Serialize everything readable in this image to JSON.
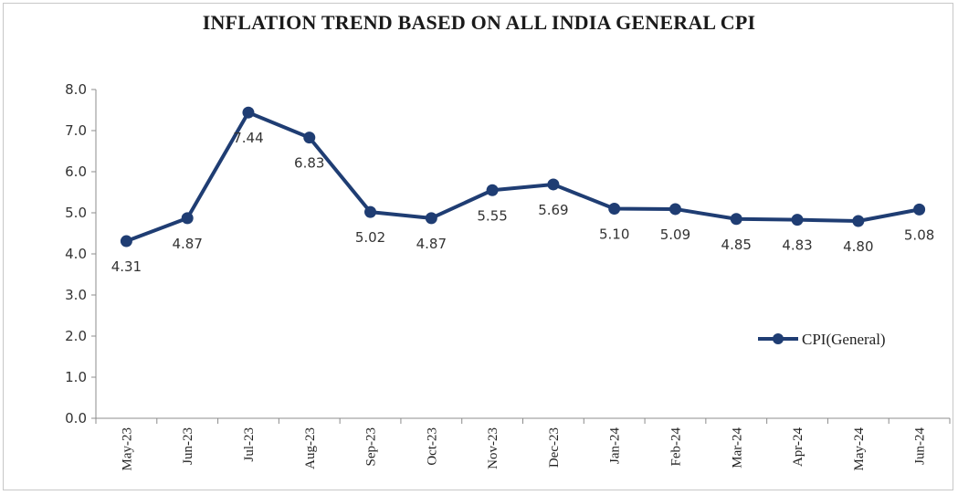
{
  "chart_data": {
    "type": "line",
    "title": "INFLATION TREND BASED ON ALL INDIA GENERAL CPI",
    "xlabel": "",
    "ylabel": "",
    "categories": [
      "May-23",
      "Jun-23",
      "Jul-23",
      "Aug-23",
      "Sep-23",
      "Oct-23",
      "Nov-23",
      "Dec-23",
      "Jan-24",
      "Feb-24",
      "Mar-24",
      "Apr-24",
      "May-24",
      "Jun-24"
    ],
    "series": [
      {
        "name": "CPI(General)",
        "values": [
          4.31,
          4.87,
          7.44,
          6.83,
          5.02,
          4.87,
          5.55,
          5.69,
          5.1,
          5.09,
          4.85,
          4.83,
          4.8,
          5.08
        ],
        "labels": [
          "4.31",
          "4.87",
          "7.44",
          "6.83",
          "5.02",
          "4.87",
          "5.55",
          "5.69",
          "5.10",
          "5.09",
          "4.85",
          "4.83",
          "4.80",
          "5.08"
        ],
        "color": "#1f3d73"
      }
    ],
    "ylim": [
      0,
      8
    ],
    "yticks": [
      "0.0",
      "1.0",
      "2.0",
      "3.0",
      "4.0",
      "5.0",
      "6.0",
      "7.0",
      "8.0"
    ],
    "grid": false,
    "legend": "right"
  }
}
